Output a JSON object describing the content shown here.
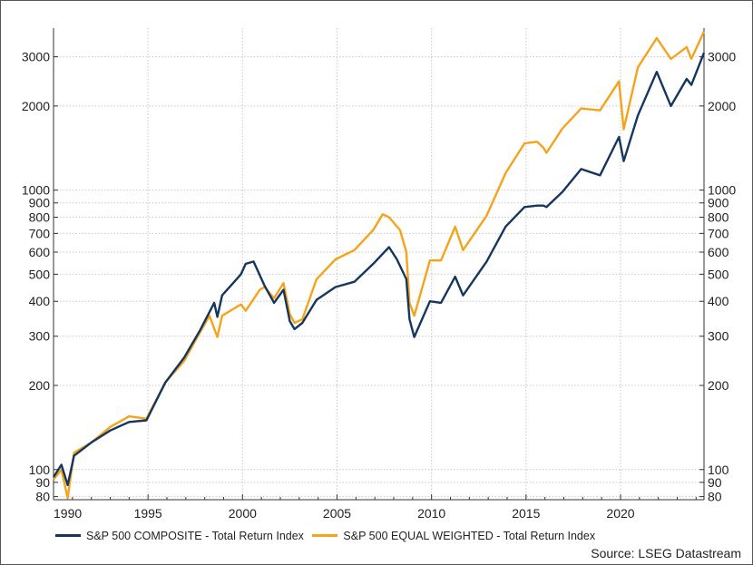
{
  "chart_data": {
    "type": "line",
    "scale_y": "log",
    "xlim": [
      "1990-01",
      "2024-06"
    ],
    "ylim": [
      78,
      3800
    ],
    "x_ticks": [
      "1990",
      "1995",
      "2000",
      "2005",
      "2010",
      "2015",
      "2020"
    ],
    "y_ticks": [
      80,
      90,
      100,
      200,
      300,
      400,
      500,
      600,
      700,
      800,
      900,
      1000,
      2000,
      3000
    ],
    "grid": true,
    "legend_position": "bottom-left",
    "source": "Source: LSEG Datastream",
    "series": [
      {
        "name": "S&P 500 COMPOSITE - Total Return Index",
        "color": "#14365f",
        "points": [
          [
            "1990-01",
            94
          ],
          [
            "1990-06",
            104
          ],
          [
            "1990-10",
            88
          ],
          [
            "1991-02",
            112
          ],
          [
            "1992-01",
            125
          ],
          [
            "1993-01",
            138
          ],
          [
            "1994-01",
            148
          ],
          [
            "1994-12",
            150
          ],
          [
            "1995-12",
            205
          ],
          [
            "1996-12",
            252
          ],
          [
            "1997-10",
            315
          ],
          [
            "1998-07",
            395
          ],
          [
            "1998-09",
            352
          ],
          [
            "1998-12",
            420
          ],
          [
            "1999-12",
            500
          ],
          [
            "2000-03",
            545
          ],
          [
            "2000-08",
            555
          ],
          [
            "2001-03",
            455
          ],
          [
            "2001-09",
            395
          ],
          [
            "2002-03",
            440
          ],
          [
            "2002-07",
            340
          ],
          [
            "2002-10",
            318
          ],
          [
            "2003-03",
            335
          ],
          [
            "2003-12",
            405
          ],
          [
            "2004-12",
            450
          ],
          [
            "2005-12",
            470
          ],
          [
            "2006-12",
            545
          ],
          [
            "2007-10",
            625
          ],
          [
            "2008-03",
            565
          ],
          [
            "2008-09",
            480
          ],
          [
            "2008-11",
            345
          ],
          [
            "2009-02",
            298
          ],
          [
            "2009-12",
            400
          ],
          [
            "2010-07",
            395
          ],
          [
            "2011-04",
            490
          ],
          [
            "2011-09",
            420
          ],
          [
            "2012-12",
            555
          ],
          [
            "2013-12",
            740
          ],
          [
            "2014-12",
            870
          ],
          [
            "2015-08",
            880
          ],
          [
            "2015-12",
            880
          ],
          [
            "2016-02",
            870
          ],
          [
            "2016-12",
            985
          ],
          [
            "2017-12",
            1190
          ],
          [
            "2018-12",
            1130
          ],
          [
            "2019-12",
            1550
          ],
          [
            "2020-03",
            1270
          ],
          [
            "2020-12",
            1850
          ],
          [
            "2021-12",
            2650
          ],
          [
            "2022-09",
            2000
          ],
          [
            "2023-07",
            2500
          ],
          [
            "2023-10",
            2380
          ],
          [
            "2024-06",
            3100
          ]
        ]
      },
      {
        "name": "S&P 500 EQUAL WEIGHTED - Total Return Index",
        "color": "#f5a31a",
        "points": [
          [
            "1990-01",
            92
          ],
          [
            "1990-06",
            100
          ],
          [
            "1990-10",
            79
          ],
          [
            "1991-02",
            115
          ],
          [
            "1992-01",
            125
          ],
          [
            "1993-01",
            142
          ],
          [
            "1994-01",
            155
          ],
          [
            "1994-12",
            152
          ],
          [
            "1995-12",
            205
          ],
          [
            "1996-12",
            245
          ],
          [
            "1997-10",
            310
          ],
          [
            "1998-04",
            355
          ],
          [
            "1998-09",
            298
          ],
          [
            "1998-12",
            355
          ],
          [
            "1999-12",
            390
          ],
          [
            "2000-03",
            370
          ],
          [
            "2000-12",
            440
          ],
          [
            "2001-03",
            450
          ],
          [
            "2001-09",
            410
          ],
          [
            "2002-03",
            465
          ],
          [
            "2002-07",
            360
          ],
          [
            "2002-10",
            335
          ],
          [
            "2003-03",
            345
          ],
          [
            "2003-12",
            480
          ],
          [
            "2004-12",
            565
          ],
          [
            "2005-12",
            610
          ],
          [
            "2006-12",
            720
          ],
          [
            "2007-06",
            820
          ],
          [
            "2007-10",
            800
          ],
          [
            "2008-05",
            720
          ],
          [
            "2008-09",
            600
          ],
          [
            "2008-11",
            395
          ],
          [
            "2009-02",
            355
          ],
          [
            "2009-12",
            560
          ],
          [
            "2010-07",
            560
          ],
          [
            "2011-04",
            740
          ],
          [
            "2011-09",
            610
          ],
          [
            "2012-12",
            810
          ],
          [
            "2013-12",
            1150
          ],
          [
            "2014-12",
            1470
          ],
          [
            "2015-08",
            1490
          ],
          [
            "2015-12",
            1420
          ],
          [
            "2016-02",
            1360
          ],
          [
            "2016-12",
            1660
          ],
          [
            "2017-12",
            1960
          ],
          [
            "2018-12",
            1930
          ],
          [
            "2019-12",
            2450
          ],
          [
            "2020-03",
            1650
          ],
          [
            "2020-12",
            2750
          ],
          [
            "2021-12",
            3500
          ],
          [
            "2022-09",
            2950
          ],
          [
            "2023-07",
            3250
          ],
          [
            "2023-10",
            2950
          ],
          [
            "2024-06",
            3700
          ]
        ]
      }
    ]
  }
}
